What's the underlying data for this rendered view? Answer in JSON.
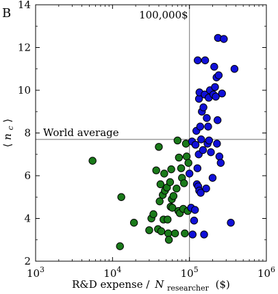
{
  "panel_label": "B",
  "chart_data": {
    "type": "scatter",
    "title": "",
    "xlabel": {
      "main": "R&D expense /",
      "italic": "N",
      "subscript": "researcher",
      "unit": "($)"
    },
    "ylabel": {
      "left": "⟨",
      "italic": "n",
      "subscript": "c",
      "right": "⟩"
    },
    "x_scale": "log",
    "xlim": [
      1000,
      1000000
    ],
    "ylim": [
      2,
      14
    ],
    "x_ticks": [
      {
        "value": 1000,
        "base": "10",
        "exp": "3"
      },
      {
        "value": 10000,
        "base": "10",
        "exp": "4"
      },
      {
        "value": 100000,
        "base": "10",
        "exp": "5"
      },
      {
        "value": 1000000,
        "base": "10",
        "exp": "6"
      }
    ],
    "y_ticks": [
      2,
      4,
      6,
      8,
      10,
      12,
      14
    ],
    "grid": false,
    "reference_lines": {
      "vertical": {
        "x": 100000,
        "label": "100,000$"
      },
      "horizontal": {
        "y": 7.7,
        "label": "World average"
      }
    },
    "colors": {
      "below_threshold": "#1a7a1a",
      "above_threshold": "#1010d8",
      "reference_line": "#888888"
    },
    "series": [
      {
        "color": "#1a7a1a",
        "points": [
          [
            5500,
            6.7
          ],
          [
            13000,
            5.0
          ],
          [
            12500,
            2.7
          ],
          [
            19000,
            3.8
          ],
          [
            30000,
            3.45
          ],
          [
            32000,
            4.0
          ],
          [
            34000,
            4.2
          ],
          [
            37000,
            6.25
          ],
          [
            39000,
            3.5
          ],
          [
            40000,
            7.35
          ],
          [
            41000,
            4.8
          ],
          [
            42000,
            5.6
          ],
          [
            43000,
            3.4
          ],
          [
            45000,
            5.1
          ],
          [
            46000,
            3.95
          ],
          [
            47000,
            6.1
          ],
          [
            48000,
            5.3
          ],
          [
            51000,
            5.45
          ],
          [
            52000,
            3.95
          ],
          [
            53000,
            3.3
          ],
          [
            54000,
            3.0
          ],
          [
            56000,
            5.7
          ],
          [
            57000,
            4.55
          ],
          [
            58000,
            6.3
          ],
          [
            59000,
            4.9
          ],
          [
            60000,
            4.5
          ],
          [
            62000,
            5.05
          ],
          [
            65000,
            3.3
          ],
          [
            68000,
            5.4
          ],
          [
            70000,
            7.65
          ],
          [
            72000,
            4.35
          ],
          [
            73000,
            6.85
          ],
          [
            75000,
            4.25
          ],
          [
            78000,
            6.35
          ],
          [
            80000,
            5.9
          ],
          [
            83000,
            4.45
          ],
          [
            85000,
            5.65
          ],
          [
            87000,
            3.3
          ],
          [
            90000,
            7.5
          ],
          [
            92000,
            6.9
          ],
          [
            95000,
            4.35
          ],
          [
            97000,
            6.6
          ]
        ]
      },
      {
        "color": "#1010d8",
        "points": [
          [
            100000,
            6.1
          ],
          [
            105000,
            4.5
          ],
          [
            108000,
            7.6
          ],
          [
            110000,
            3.25
          ],
          [
            115000,
            3.9
          ],
          [
            118000,
            4.4
          ],
          [
            120000,
            7.45
          ],
          [
            123000,
            8.1
          ],
          [
            125000,
            5.6
          ],
          [
            127000,
            6.35
          ],
          [
            128000,
            11.4
          ],
          [
            130000,
            5.5
          ],
          [
            132000,
            7.0
          ],
          [
            133000,
            9.6
          ],
          [
            134000,
            5.3
          ],
          [
            135000,
            9.9
          ],
          [
            138000,
            8.3
          ],
          [
            140000,
            5.2
          ],
          [
            142000,
            7.7
          ],
          [
            145000,
            9.0
          ],
          [
            150000,
            7.2
          ],
          [
            152000,
            9.2
          ],
          [
            155000,
            3.25
          ],
          [
            158000,
            9.8
          ],
          [
            160000,
            11.4
          ],
          [
            165000,
            5.4
          ],
          [
            168000,
            8.7
          ],
          [
            172000,
            7.5
          ],
          [
            175000,
            8.3
          ],
          [
            178000,
            9.65
          ],
          [
            180000,
            7.65
          ],
          [
            185000,
            10.0
          ],
          [
            190000,
            7.1
          ],
          [
            200000,
            5.9
          ],
          [
            205000,
            9.8
          ],
          [
            210000,
            11.1
          ],
          [
            215000,
            10.15
          ],
          [
            220000,
            9.7
          ],
          [
            225000,
            10.6
          ],
          [
            228000,
            7.5
          ],
          [
            232000,
            8.6
          ],
          [
            235000,
            12.45
          ],
          [
            240000,
            10.7
          ],
          [
            245000,
            6.9
          ],
          [
            255000,
            6.6
          ],
          [
            265000,
            9.85
          ],
          [
            280000,
            12.4
          ],
          [
            345000,
            3.8
          ],
          [
            385000,
            11.0
          ]
        ]
      }
    ]
  }
}
